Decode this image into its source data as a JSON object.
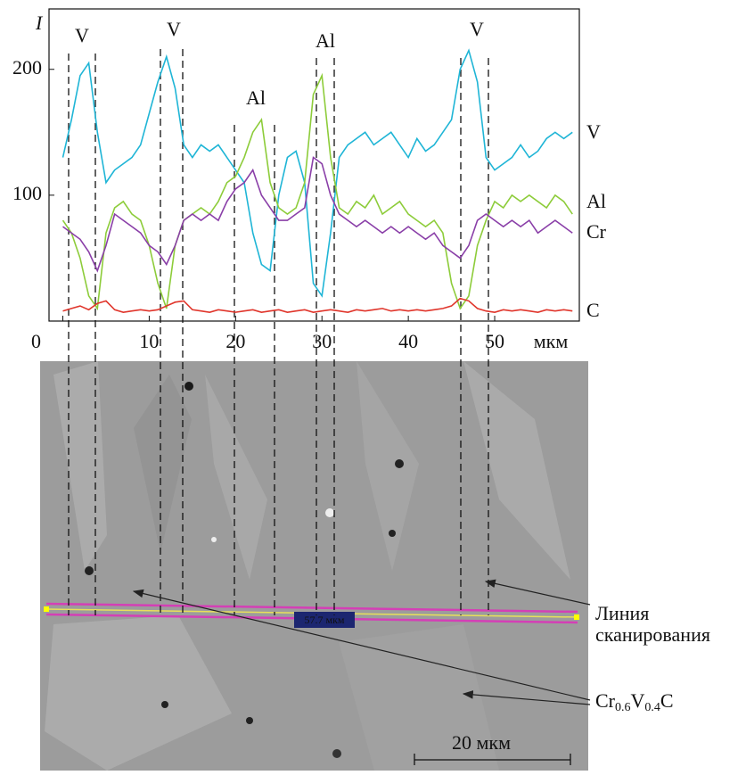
{
  "chart_data": {
    "type": "line",
    "y_label": "I",
    "x_unit": "мкм",
    "x": [
      0,
      1,
      2,
      3,
      4,
      5,
      6,
      7,
      8,
      9,
      10,
      11,
      12,
      13,
      14,
      15,
      16,
      17,
      18,
      19,
      20,
      21,
      22,
      23,
      24,
      25,
      26,
      27,
      28,
      29,
      30,
      31,
      32,
      33,
      34,
      35,
      36,
      37,
      38,
      39,
      40,
      41,
      42,
      43,
      44,
      45,
      46,
      47,
      48,
      49,
      50,
      51,
      52,
      53,
      54,
      55,
      56,
      57,
      58,
      59
    ],
    "series": [
      {
        "name": "V",
        "color": "#1fb5d6",
        "values": [
          130,
          160,
          195,
          205,
          150,
          110,
          120,
          125,
          130,
          140,
          165,
          190,
          210,
          185,
          140,
          130,
          140,
          135,
          140,
          130,
          120,
          110,
          70,
          45,
          40,
          100,
          130,
          135,
          110,
          30,
          20,
          70,
          130,
          140,
          145,
          150,
          140,
          145,
          150,
          140,
          130,
          145,
          135,
          140,
          150,
          160,
          200,
          215,
          190,
          130,
          120,
          125,
          130,
          140,
          130,
          135,
          145,
          150,
          145,
          150
        ]
      },
      {
        "name": "Al",
        "color": "#8dcc3a",
        "values": [
          80,
          70,
          50,
          20,
          10,
          70,
          90,
          95,
          85,
          80,
          60,
          30,
          10,
          60,
          80,
          85,
          90,
          85,
          95,
          110,
          115,
          130,
          150,
          160,
          110,
          90,
          85,
          90,
          110,
          180,
          195,
          130,
          90,
          85,
          95,
          90,
          100,
          85,
          90,
          95,
          85,
          80,
          75,
          80,
          70,
          30,
          10,
          20,
          60,
          80,
          95,
          90,
          100,
          95,
          100,
          95,
          90,
          100,
          95,
          85
        ]
      },
      {
        "name": "Cr",
        "color": "#8a3fa8",
        "values": [
          75,
          70,
          65,
          55,
          40,
          60,
          85,
          80,
          75,
          70,
          60,
          55,
          45,
          60,
          80,
          85,
          80,
          85,
          80,
          95,
          105,
          110,
          120,
          100,
          90,
          80,
          80,
          85,
          90,
          130,
          125,
          100,
          85,
          80,
          75,
          80,
          75,
          70,
          75,
          70,
          75,
          70,
          65,
          70,
          60,
          55,
          50,
          60,
          80,
          85,
          80,
          75,
          80,
          75,
          80,
          70,
          75,
          80,
          75,
          70
        ]
      },
      {
        "name": "C",
        "color": "#e0352b",
        "values": [
          8,
          10,
          12,
          9,
          14,
          16,
          9,
          7,
          8,
          9,
          8,
          9,
          12,
          15,
          16,
          9,
          8,
          7,
          9,
          8,
          7,
          8,
          9,
          7,
          8,
          9,
          7,
          8,
          9,
          7,
          8,
          9,
          8,
          7,
          9,
          8,
          9,
          10,
          8,
          9,
          8,
          9,
          8,
          9,
          10,
          12,
          18,
          16,
          10,
          8,
          7,
          9,
          8,
          9,
          8,
          7,
          9,
          8,
          9,
          8
        ]
      }
    ],
    "xlim": [
      -1.6,
      59.8
    ],
    "xticks": [
      0,
      10,
      20,
      30,
      40,
      50
    ],
    "ylim": [
      0,
      248
    ],
    "yticks": [
      100,
      200
    ],
    "annotations": [
      "V",
      "V",
      "Al",
      "Al",
      "V"
    ]
  },
  "image": {
    "scan_length_label": "57.7 мкм",
    "scale_bar_label": "20 мкм",
    "scan_line_label": [
      "Линия",
      "сканирования"
    ],
    "phase_label": [
      "Cr",
      "0.6",
      "V",
      "0.4",
      "C"
    ]
  }
}
